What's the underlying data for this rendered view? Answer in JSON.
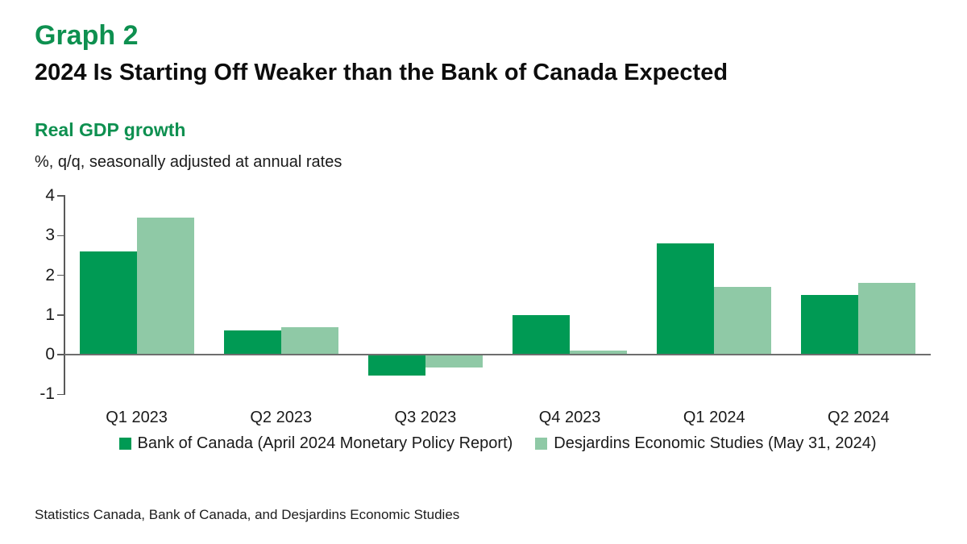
{
  "header": {
    "graph_label": "Graph 2",
    "title": "2024 Is Starting Off Weaker than the Bank of Canada Expected",
    "subtitle": "Real GDP growth",
    "units_note": "%, q/q, seasonally adjusted at annual rates"
  },
  "colors": {
    "heading_green": "#0E9050",
    "series_dark_green": "#009A54",
    "series_light_green": "#8FC9A6",
    "axis_gray": "#595959",
    "zero_line_gray": "#6E6E6E",
    "text_black": "#1A1A1A"
  },
  "chart_data": {
    "type": "bar",
    "title": "Real GDP growth",
    "subtitle_units": "%, q/q, seasonally adjusted at annual rates",
    "categories": [
      "Q1 2023",
      "Q2 2023",
      "Q3 2023",
      "Q4 2023",
      "Q1 2024",
      "Q2 2024"
    ],
    "series": [
      {
        "name": "Bank of Canada (April 2024 Monetary Policy Report)",
        "color": "#009A54",
        "values": [
          2.6,
          0.6,
          -0.5,
          1.0,
          2.8,
          1.5
        ]
      },
      {
        "name": "Desjardins Economic Studies (May 31, 2024)",
        "color": "#8FC9A6",
        "values": [
          3.45,
          0.7,
          -0.3,
          0.1,
          1.7,
          1.8
        ]
      }
    ],
    "xlabel": "",
    "ylabel": "",
    "ylim": [
      -1,
      4
    ],
    "yticks": [
      4,
      3,
      2,
      1,
      0,
      -1
    ],
    "grid": false,
    "legend_position": "bottom"
  },
  "footer": {
    "source": "Statistics Canada, Bank of Canada, and Desjardins Economic Studies"
  }
}
